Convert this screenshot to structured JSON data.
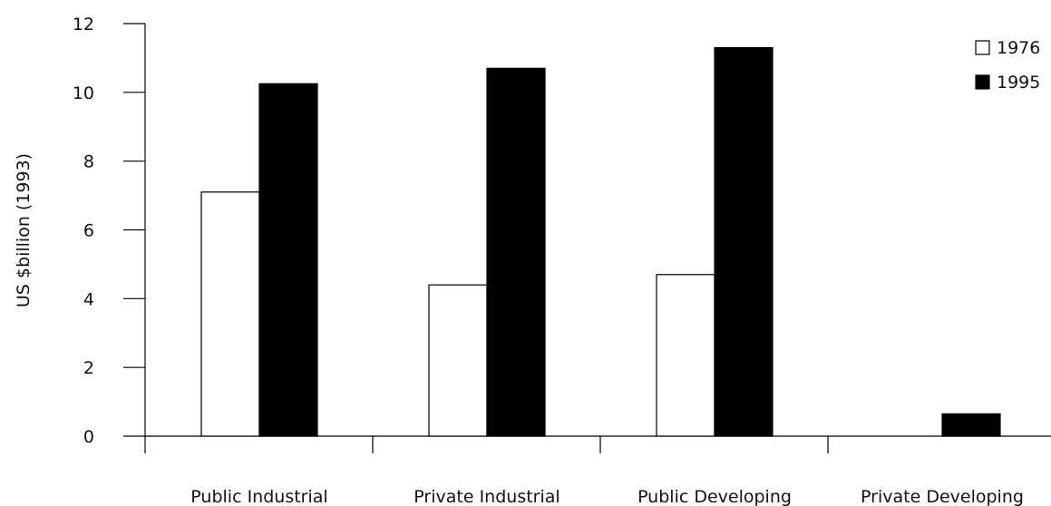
{
  "chart_data": {
    "type": "bar",
    "title": "",
    "xlabel": "",
    "ylabel": "US $billion (1993)",
    "ylim": [
      0,
      12
    ],
    "yticks": [
      0,
      2,
      4,
      6,
      8,
      10,
      12
    ],
    "categories": [
      "Public Industrial",
      "Private Industrial",
      "Public Developing",
      "Private Developing"
    ],
    "series": [
      {
        "name": "1976",
        "values": [
          7.1,
          4.4,
          4.7,
          0
        ],
        "color": "#ffffff"
      },
      {
        "name": "1995",
        "values": [
          10.25,
          10.7,
          11.3,
          0.65
        ],
        "color": "#000000"
      }
    ],
    "legend_position": "top-right",
    "grid": false
  }
}
